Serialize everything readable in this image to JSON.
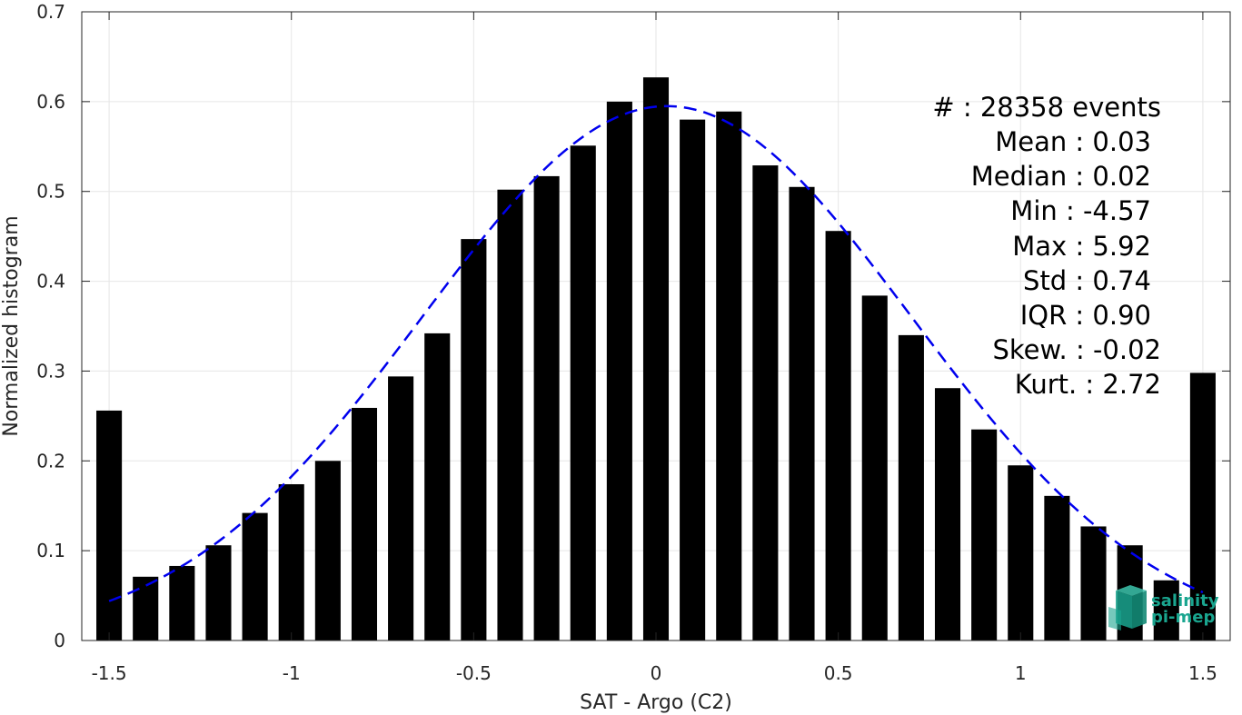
{
  "chart_data": {
    "type": "bar",
    "xlabel": "SAT - Argo (C2)",
    "ylabel": "Normalized histogram",
    "xlim": [
      -1.575,
      1.575
    ],
    "ylim": [
      0,
      0.7
    ],
    "xticks": [
      -1.5,
      -1,
      -0.5,
      0,
      0.5,
      1,
      1.5
    ],
    "xtick_labels": [
      "-1.5",
      "-1",
      "-0.5",
      "0",
      "0.5",
      "1",
      "1.5"
    ],
    "yticks": [
      0,
      0.1,
      0.2,
      0.3,
      0.4,
      0.5,
      0.6,
      0.7
    ],
    "ytick_labels": [
      "0",
      "0.1",
      "0.2",
      "0.3",
      "0.4",
      "0.5",
      "0.6",
      "0.7"
    ],
    "grid": true,
    "bar_color": "#000000",
    "x": [
      -1.5,
      -1.4,
      -1.3,
      -1.2,
      -1.1,
      -1.0,
      -0.9,
      -0.8,
      -0.7,
      -0.6,
      -0.5,
      -0.4,
      -0.3,
      -0.2,
      -0.1,
      0.0,
      0.1,
      0.2,
      0.3,
      0.4,
      0.5,
      0.6,
      0.7,
      0.8,
      0.9,
      1.0,
      1.1,
      1.2,
      1.3,
      1.4,
      1.5
    ],
    "values": [
      0.256,
      0.071,
      0.083,
      0.106,
      0.142,
      0.174,
      0.2,
      0.259,
      0.294,
      0.342,
      0.447,
      0.502,
      0.517,
      0.551,
      0.6,
      0.627,
      0.58,
      0.589,
      0.529,
      0.505,
      0.456,
      0.384,
      0.34,
      0.281,
      0.235,
      0.195,
      0.161,
      0.127,
      0.106,
      0.067,
      0.298
    ],
    "fit_curve": {
      "style": "dashed",
      "color": "#0000ee",
      "mean": 0.03,
      "std": 0.67,
      "peak": 0.595,
      "x_range": [
        -1.5,
        1.5
      ]
    }
  },
  "stats": [
    "#  : 28358 events",
    "Mean : 0.03",
    "Median : 0.02",
    "Min : -4.57",
    "Max : 5.92",
    "Std : 0.74",
    "IQR : 0.90",
    "Skew. : -0.02",
    "Kurt. : 2.72"
  ],
  "logo": {
    "line1": "salinity",
    "line2": "pi-mep",
    "color": "#1aa58f"
  }
}
